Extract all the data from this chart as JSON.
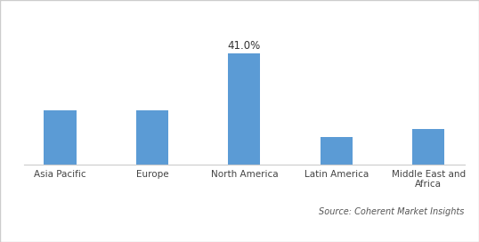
{
  "categories": [
    "Asia Pacific",
    "Europe",
    "North America",
    "Latin America",
    "Middle East and\nAfrica"
  ],
  "values": [
    20.0,
    20.0,
    41.0,
    10.0,
    13.0
  ],
  "bar_color": "#5b9bd5",
  "label_bar_index": 2,
  "label_text": "41.0%",
  "source_text": "Source: Coherent Market Insights",
  "ylim": [
    0,
    50
  ],
  "background_color": "#ffffff",
  "bar_width": 0.35,
  "label_fontsize": 8.5,
  "tick_fontsize": 7.5,
  "source_fontsize": 7.0
}
